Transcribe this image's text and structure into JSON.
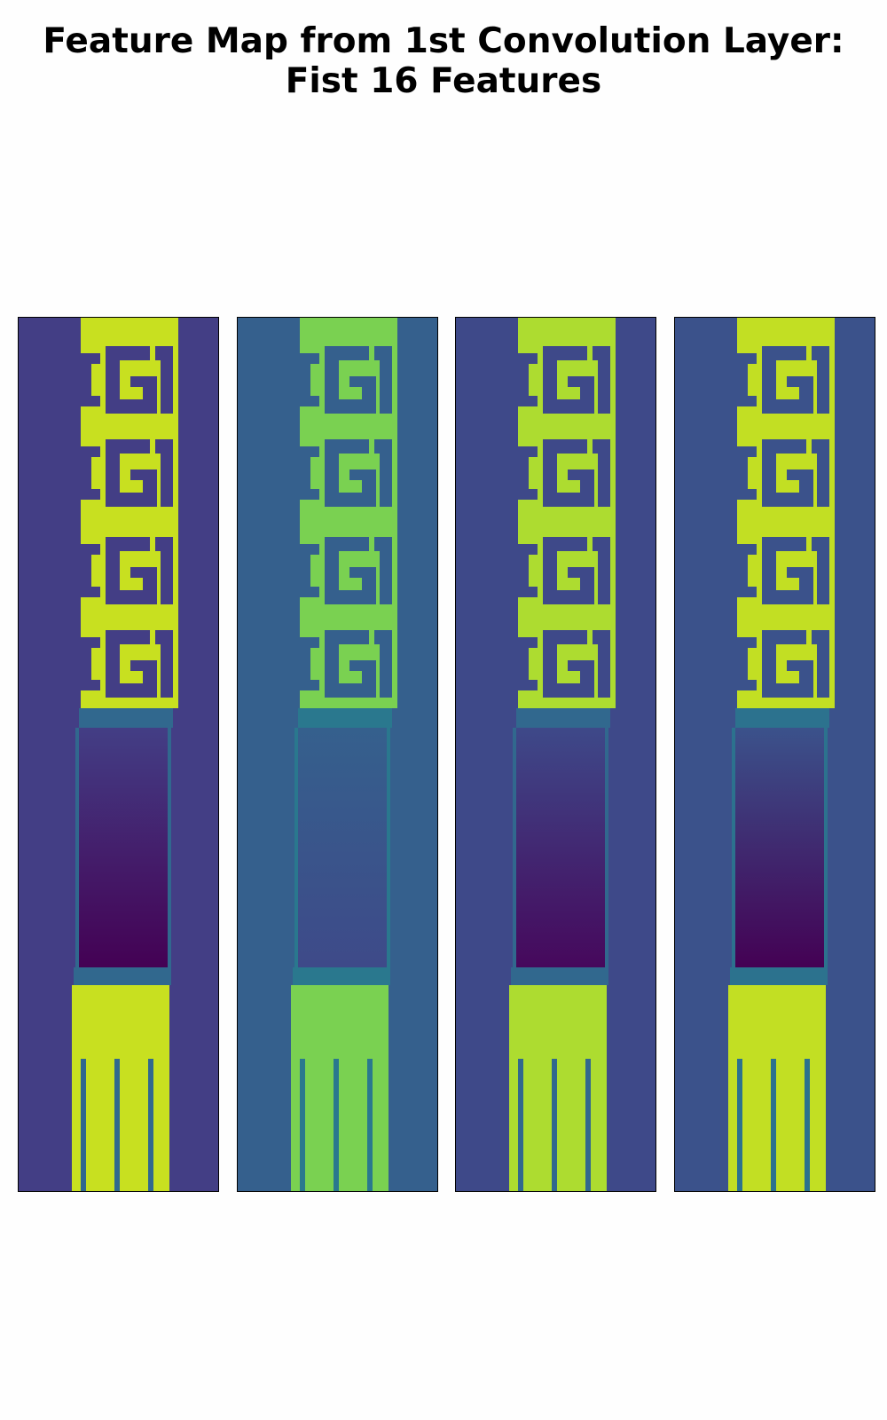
{
  "figure": {
    "title_line1": "Feature Map from 1st Convolution Layer:",
    "title_line2": "Fist 16 Features"
  },
  "panels": [
    {
      "name": "feature-map-1",
      "background": "#433e85",
      "strip": "#c8e020",
      "dark_box": "#440154",
      "stripe": "#31688e"
    },
    {
      "name": "feature-map-2",
      "background": "#35608d",
      "strip": "#7ad151",
      "dark_box": "#3e4a89",
      "stripe": "#2a788e"
    },
    {
      "name": "feature-map-3",
      "background": "#3e4989",
      "strip": "#addc30",
      "dark_box": "#46085c",
      "stripe": "#31688e"
    },
    {
      "name": "feature-map-4",
      "background": "#3b528b",
      "strip": "#c2df23",
      "dark_box": "#440154",
      "stripe": "#2c728e"
    }
  ],
  "colormap": "viridis"
}
